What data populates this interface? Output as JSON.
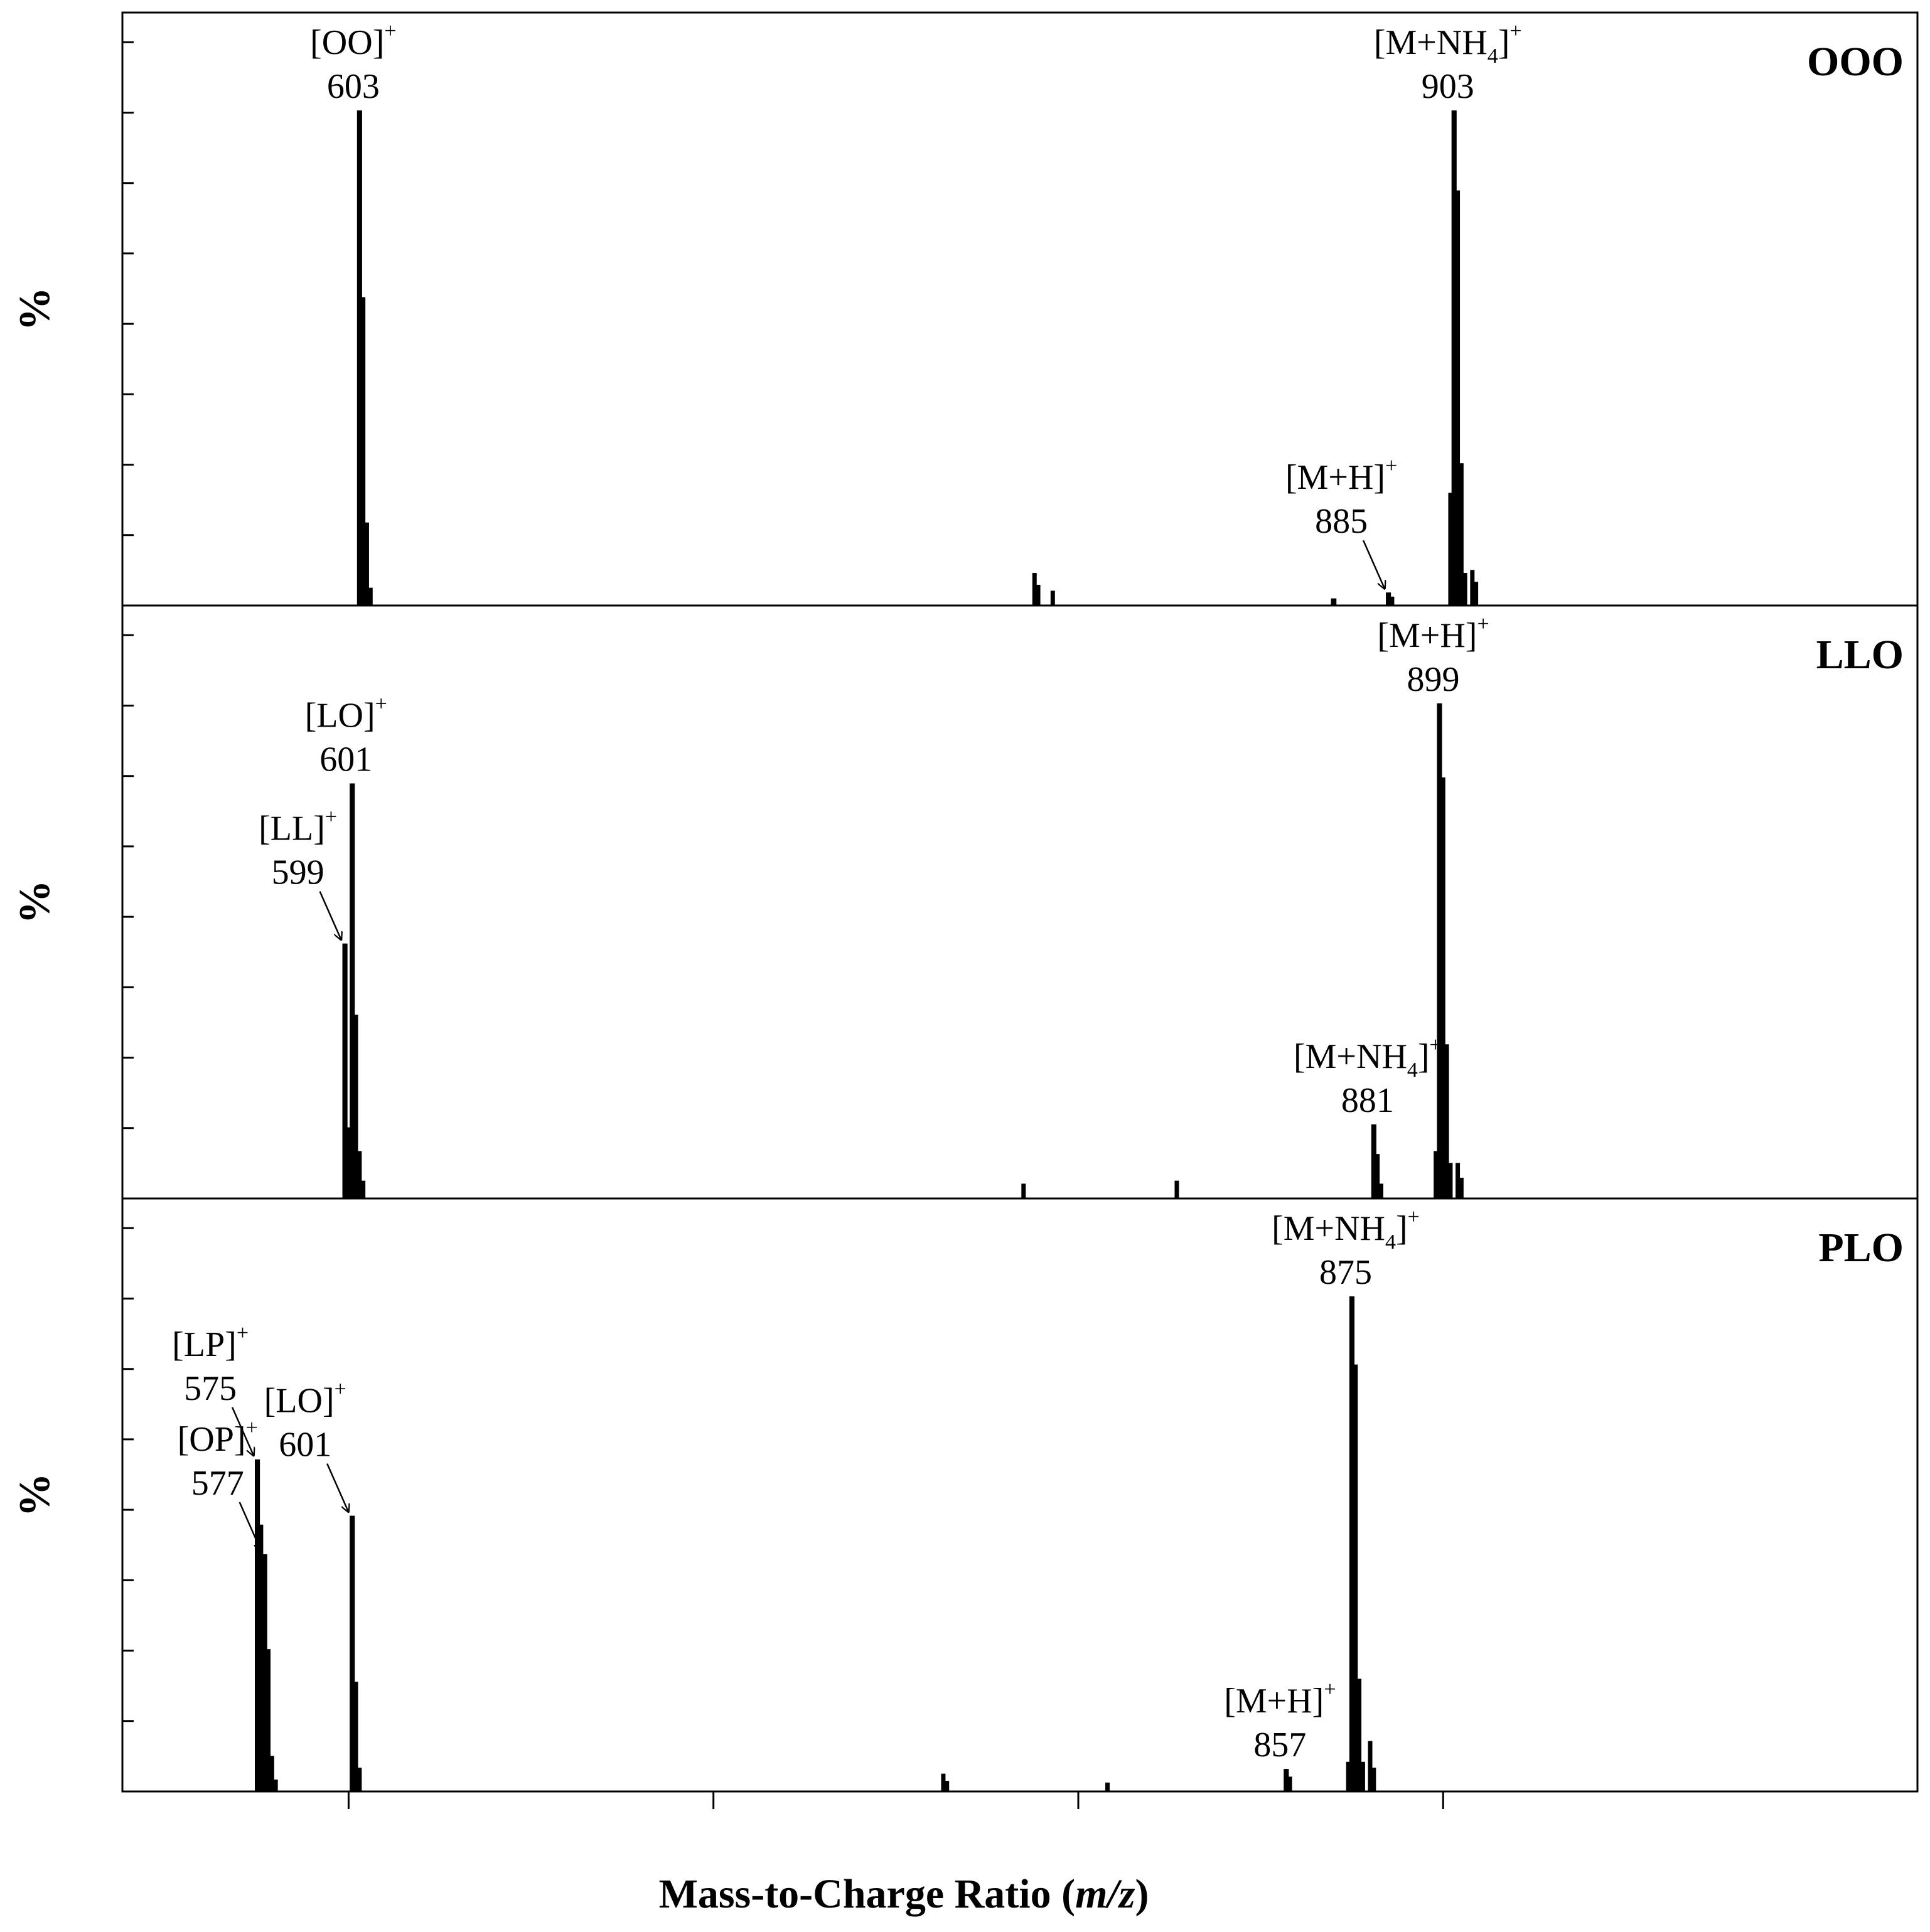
{
  "chart_data": {
    "type": "bar",
    "xlabel": "Mass-to-Charge Ratio (m/z)",
    "xlabel_main": "Mass-to-Charge Ratio (",
    "xlabel_italic": "m/z",
    "xlabel_close": ")",
    "xlim": [
      538,
      1030
    ],
    "x_ticks": [
      600,
      700,
      800,
      900
    ],
    "y_tick_count": 8,
    "grid": false,
    "panels": [
      {
        "name": "OOO",
        "ylabel": "%",
        "peaks": [
          {
            "mz": 603,
            "rel": 0.835,
            "width": 1.4
          },
          {
            "mz": 604,
            "rel": 0.52,
            "width": 1.2
          },
          {
            "mz": 605,
            "rel": 0.14,
            "width": 1.2
          },
          {
            "mz": 606,
            "rel": 0.03,
            "width": 1.2
          },
          {
            "mz": 788,
            "rel": 0.055,
            "width": 1.2
          },
          {
            "mz": 789,
            "rel": 0.035,
            "width": 1.2
          },
          {
            "mz": 793,
            "rel": 0.025,
            "width": 1.2
          },
          {
            "mz": 870,
            "rel": 0.012,
            "width": 1.5
          },
          {
            "mz": 885,
            "rel": 0.022,
            "width": 1.4
          },
          {
            "mz": 886,
            "rel": 0.015,
            "width": 1.2
          },
          {
            "mz": 902,
            "rel": 0.19,
            "width": 1.2
          },
          {
            "mz": 903,
            "rel": 0.835,
            "width": 1.4
          },
          {
            "mz": 904,
            "rel": 0.7,
            "width": 1.2
          },
          {
            "mz": 905,
            "rel": 0.24,
            "width": 1.2
          },
          {
            "mz": 906,
            "rel": 0.055,
            "width": 1.2
          },
          {
            "mz": 908,
            "rel": 0.06,
            "width": 1.2
          },
          {
            "mz": 909,
            "rel": 0.04,
            "width": 1.2
          }
        ],
        "annotations": [
          {
            "ion": "[OO]",
            "sub": "",
            "ion_close": "",
            "sup": "+",
            "mz_label": "603",
            "mz": 603,
            "rel": 0.835,
            "arrow": false
          },
          {
            "ion": "[M+NH",
            "sub": "4",
            "ion_close": "]",
            "sup": "+",
            "mz_label": "903",
            "mz": 903,
            "rel": 0.835,
            "arrow": false
          },
          {
            "ion": "[M+H]",
            "sub": "",
            "ion_close": "",
            "sup": "+",
            "mz_label": "885",
            "mz": 885,
            "rel": 0.022,
            "arrow": true
          }
        ]
      },
      {
        "name": "LLO",
        "ylabel": "%",
        "peaks": [
          {
            "mz": 599,
            "rel": 0.43,
            "width": 1.4
          },
          {
            "mz": 600,
            "rel": 0.12,
            "width": 1.2
          },
          {
            "mz": 601,
            "rel": 0.7,
            "width": 1.4
          },
          {
            "mz": 602,
            "rel": 0.31,
            "width": 1.2
          },
          {
            "mz": 603,
            "rel": 0.08,
            "width": 1.2
          },
          {
            "mz": 604,
            "rel": 0.03,
            "width": 1.2
          },
          {
            "mz": 785,
            "rel": 0.025,
            "width": 1.2
          },
          {
            "mz": 827,
            "rel": 0.03,
            "width": 1.2
          },
          {
            "mz": 881,
            "rel": 0.125,
            "width": 1.4
          },
          {
            "mz": 882,
            "rel": 0.075,
            "width": 1.2
          },
          {
            "mz": 883,
            "rel": 0.025,
            "width": 1.2
          },
          {
            "mz": 898,
            "rel": 0.08,
            "width": 1.2
          },
          {
            "mz": 899,
            "rel": 0.835,
            "width": 1.4
          },
          {
            "mz": 900,
            "rel": 0.71,
            "width": 1.2
          },
          {
            "mz": 901,
            "rel": 0.26,
            "width": 1.2
          },
          {
            "mz": 902,
            "rel": 0.06,
            "width": 1.2
          },
          {
            "mz": 904,
            "rel": 0.06,
            "width": 1.2
          },
          {
            "mz": 905,
            "rel": 0.035,
            "width": 1.2
          }
        ],
        "annotations": [
          {
            "ion": "[LO]",
            "sub": "",
            "ion_close": "",
            "sup": "+",
            "mz_label": "601",
            "mz": 601,
            "rel": 0.7,
            "arrow": false
          },
          {
            "ion": "[LL]",
            "sub": "",
            "ion_close": "",
            "sup": "+",
            "mz_label": "599",
            "mz": 599,
            "rel": 0.43,
            "arrow": true
          },
          {
            "ion": "[M+H]",
            "sub": "",
            "ion_close": "",
            "sup": "+",
            "mz_label": "899",
            "mz": 899,
            "rel": 0.835,
            "arrow": false
          },
          {
            "ion": "[M+NH",
            "sub": "4",
            "ion_close": "]",
            "sup": "+",
            "mz_label": "881",
            "mz": 881,
            "rel": 0.125,
            "arrow": false
          }
        ]
      },
      {
        "name": "PLO",
        "ylabel": "%",
        "peaks": [
          {
            "mz": 575,
            "rel": 0.56,
            "width": 1.4
          },
          {
            "mz": 576,
            "rel": 0.45,
            "width": 1.2
          },
          {
            "mz": 577,
            "rel": 0.4,
            "width": 1.4
          },
          {
            "mz": 578,
            "rel": 0.24,
            "width": 1.2
          },
          {
            "mz": 579,
            "rel": 0.06,
            "width": 1.2
          },
          {
            "mz": 580,
            "rel": 0.02,
            "width": 1.2
          },
          {
            "mz": 601,
            "rel": 0.465,
            "width": 1.4
          },
          {
            "mz": 602,
            "rel": 0.185,
            "width": 1.2
          },
          {
            "mz": 603,
            "rel": 0.04,
            "width": 1.2
          },
          {
            "mz": 763,
            "rel": 0.03,
            "width": 1.2
          },
          {
            "mz": 764,
            "rel": 0.018,
            "width": 1.2
          },
          {
            "mz": 808,
            "rel": 0.015,
            "width": 1.2
          },
          {
            "mz": 857,
            "rel": 0.038,
            "width": 1.4
          },
          {
            "mz": 858,
            "rel": 0.025,
            "width": 1.2
          },
          {
            "mz": 874,
            "rel": 0.05,
            "width": 1.2
          },
          {
            "mz": 875,
            "rel": 0.835,
            "width": 1.4
          },
          {
            "mz": 876,
            "rel": 0.72,
            "width": 1.2
          },
          {
            "mz": 877,
            "rel": 0.19,
            "width": 1.2
          },
          {
            "mz": 878,
            "rel": 0.05,
            "width": 1.2
          },
          {
            "mz": 880,
            "rel": 0.085,
            "width": 1.2
          },
          {
            "mz": 881,
            "rel": 0.04,
            "width": 1.2
          }
        ],
        "annotations": [
          {
            "ion": "[LP]",
            "sub": "",
            "ion_close": "",
            "sup": "+",
            "mz_label": "575",
            "mz": 575,
            "rel": 0.56,
            "arrow": true
          },
          {
            "ion": "[OP]",
            "sub": "",
            "ion_close": "",
            "sup": "+",
            "mz_label": "577",
            "mz": 577,
            "rel": 0.4,
            "arrow": true
          },
          {
            "ion": "[LO]",
            "sub": "",
            "ion_close": "",
            "sup": "+",
            "mz_label": "601",
            "mz": 601,
            "rel": 0.465,
            "arrow": true
          },
          {
            "ion": "[M+NH",
            "sub": "4",
            "ion_close": "]",
            "sup": "+",
            "mz_label": "875",
            "mz": 875,
            "rel": 0.835,
            "arrow": false
          },
          {
            "ion": "[M+H]",
            "sub": "",
            "ion_close": "",
            "sup": "+",
            "mz_label": "857",
            "mz": 857,
            "rel": 0.038,
            "arrow": false
          }
        ]
      }
    ]
  }
}
